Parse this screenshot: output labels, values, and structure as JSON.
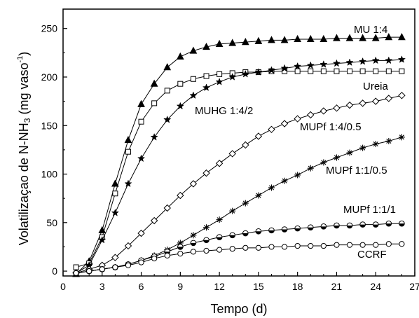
{
  "chart_data": {
    "type": "line",
    "xlabel": "Tempo (d)",
    "ylabel_main": "Volatilizaçao de N-NH",
    "ylabel_sub": "3",
    "ylabel_unit": " (mg vaso",
    "ylabel_sup": "-1",
    "ylabel_close": ")",
    "xlim": [
      0,
      27
    ],
    "ylim": [
      -5,
      270
    ],
    "xticks": [
      0,
      3,
      6,
      9,
      12,
      15,
      18,
      21,
      24,
      27
    ],
    "yticks": [
      0,
      50,
      100,
      150,
      200,
      250
    ],
    "series": [
      {
        "name": "MU 1:4",
        "marker": "triangle-filled",
        "x": [
          1,
          2,
          3,
          4,
          5,
          6,
          7,
          8,
          9,
          10,
          11,
          12,
          13,
          14,
          15,
          16,
          17,
          18,
          19,
          20,
          21,
          22,
          23,
          24,
          25,
          26
        ],
        "y": [
          -3,
          10,
          42,
          90,
          135,
          172,
          193,
          210,
          221,
          227,
          231,
          234,
          235,
          236,
          237,
          238,
          238,
          239,
          239,
          239,
          240,
          240,
          240,
          240,
          241,
          241
        ]
      },
      {
        "name": "Ureia",
        "marker": "square-open",
        "x": [
          1,
          2,
          3,
          4,
          5,
          6,
          7,
          8,
          9,
          10,
          11,
          12,
          13,
          14,
          15,
          16,
          17,
          18,
          19,
          20,
          21,
          22,
          23,
          24,
          25,
          26
        ],
        "y": [
          4,
          8,
          35,
          80,
          123,
          154,
          173,
          186,
          193,
          198,
          201,
          203,
          204,
          205,
          205,
          206,
          206,
          206,
          206,
          206,
          206,
          206,
          206,
          206,
          206,
          206
        ]
      },
      {
        "name": "MUHG 1:4/2",
        "marker": "star-filled",
        "x": [
          1,
          2,
          3,
          4,
          5,
          6,
          7,
          8,
          9,
          10,
          11,
          12,
          13,
          14,
          15,
          16,
          17,
          18,
          19,
          20,
          21,
          22,
          23,
          24,
          25,
          26
        ],
        "y": [
          -2,
          6,
          32,
          60,
          90,
          116,
          138,
          156,
          170,
          181,
          189,
          195,
          200,
          203,
          205,
          207,
          209,
          211,
          212,
          213,
          214,
          215,
          216,
          217,
          217,
          218
        ]
      },
      {
        "name": "MUPf 1:4/0.5",
        "marker": "diamond-open",
        "x": [
          1,
          2,
          3,
          4,
          5,
          6,
          7,
          8,
          9,
          10,
          11,
          12,
          13,
          14,
          15,
          16,
          17,
          18,
          19,
          20,
          21,
          22,
          23,
          24,
          25,
          26
        ],
        "y": [
          -2,
          2,
          6,
          14,
          26,
          39,
          52,
          65,
          78,
          90,
          101,
          111,
          121,
          130,
          139,
          146,
          152,
          157,
          161,
          165,
          168,
          171,
          173,
          175,
          178,
          181
        ]
      },
      {
        "name": "MUPf 1:1/0.5",
        "marker": "asterisk",
        "x": [
          1,
          2,
          3,
          4,
          5,
          6,
          7,
          8,
          9,
          10,
          11,
          12,
          13,
          14,
          15,
          16,
          17,
          18,
          19,
          20,
          21,
          22,
          23,
          24,
          25,
          26
        ],
        "y": [
          -2,
          0,
          2,
          4,
          7,
          11,
          16,
          22,
          29,
          37,
          45,
          53,
          62,
          70,
          78,
          86,
          93,
          99,
          106,
          112,
          117,
          122,
          127,
          131,
          134,
          138
        ]
      },
      {
        "name": "MUPf 1:1/1",
        "marker": "circle-halffilled",
        "x": [
          1,
          2,
          3,
          4,
          5,
          6,
          7,
          8,
          9,
          10,
          11,
          12,
          13,
          14,
          15,
          16,
          17,
          18,
          19,
          20,
          21,
          22,
          23,
          24,
          25,
          26
        ],
        "y": [
          -2,
          0,
          2,
          4,
          7,
          11,
          15,
          20,
          25,
          29,
          32,
          35,
          37,
          39,
          41,
          42,
          43,
          44,
          45,
          46,
          47,
          47,
          48,
          48,
          49,
          49
        ]
      },
      {
        "name": "CCRF",
        "marker": "circle-open",
        "x": [
          1,
          2,
          3,
          4,
          5,
          6,
          7,
          8,
          9,
          10,
          11,
          12,
          13,
          14,
          15,
          16,
          17,
          18,
          19,
          20,
          21,
          22,
          23,
          24,
          25,
          26
        ],
        "y": [
          -2,
          0,
          2,
          4,
          6,
          9,
          13,
          16,
          18,
          20,
          21,
          22,
          23,
          24,
          24,
          25,
          25,
          26,
          26,
          26,
          27,
          27,
          27,
          27,
          28,
          28
        ]
      }
    ],
    "annotations": [
      {
        "text": "MU 1:4",
        "series": "MU 1:4"
      },
      {
        "text": "Ureia",
        "series": "Ureia"
      },
      {
        "text": "MUHG 1:4/2",
        "series": "MUHG 1:4/2"
      },
      {
        "text": "MUPf 1:4/0.5",
        "series": "MUPf 1:4/0.5"
      },
      {
        "text": "MUPf 1:1/0.5",
        "series": "MUPf 1:1/0.5"
      },
      {
        "text": "MUPf 1:1/1",
        "series": "MUPf 1:1/1"
      },
      {
        "text": "CCRF",
        "series": "CCRF"
      }
    ],
    "grid": false,
    "legend": "none"
  }
}
